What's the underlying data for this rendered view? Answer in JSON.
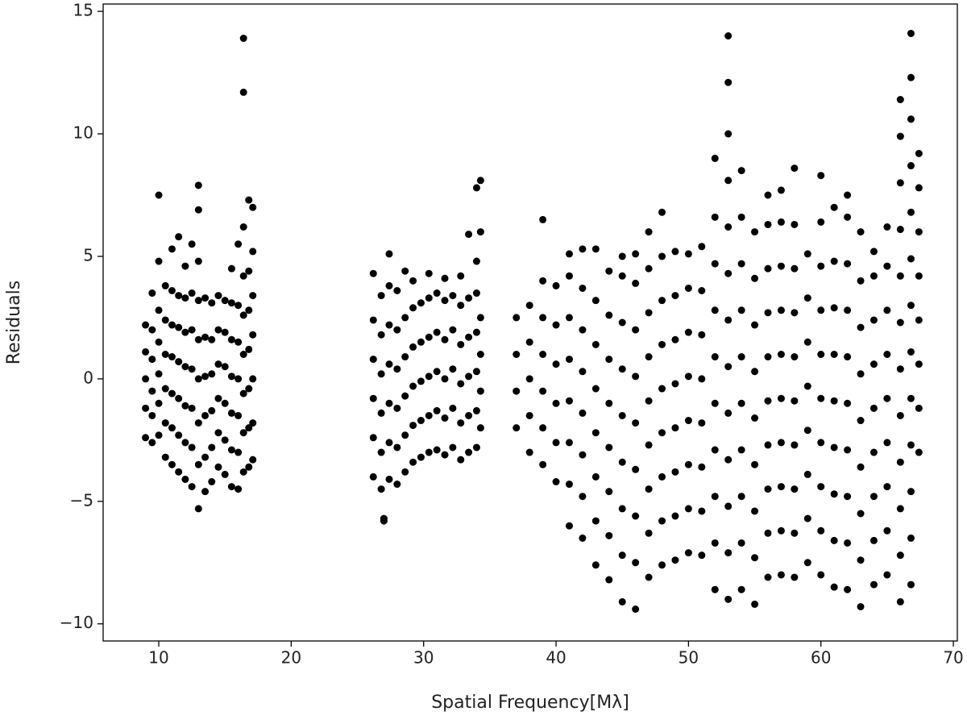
{
  "chart_data": {
    "type": "scatter",
    "x_label": "Spatial Frequency[Mλ]",
    "y_label": "Residuals",
    "color": "#000000",
    "grid": false,
    "xlim": [
      5.8,
      70.3
    ],
    "ylim": [
      -10.7,
      15.3
    ],
    "xticks": [
      10,
      20,
      30,
      40,
      50,
      60,
      70
    ],
    "yticks": [
      {
        "value": -10,
        "label": "−10"
      },
      {
        "value": -5,
        "label": "−5"
      },
      0,
      5,
      10,
      15
    ],
    "x": [
      9.0,
      9.0,
      9.0,
      9.0,
      9.0,
      9.5,
      9.5,
      9.5,
      9.5,
      9.5,
      9.5,
      10.0,
      10.0,
      10.0,
      10.0,
      10.0,
      10.0,
      10.0,
      10.5,
      10.5,
      10.5,
      10.5,
      10.5,
      10.5,
      11.0,
      11.0,
      11.0,
      11.0,
      11.0,
      11.0,
      11.0,
      11.5,
      11.5,
      11.5,
      11.5,
      11.5,
      11.5,
      11.5,
      12.0,
      12.0,
      12.0,
      12.0,
      12.0,
      12.0,
      12.0,
      12.5,
      12.5,
      12.5,
      12.5,
      12.5,
      12.5,
      12.5,
      13.0,
      13.0,
      13.0,
      13.0,
      13.0,
      13.0,
      13.0,
      13.0,
      13.0,
      13.5,
      13.5,
      13.5,
      13.5,
      13.5,
      13.5,
      14.0,
      14.0,
      14.0,
      14.0,
      14.0,
      14.0,
      14.5,
      14.5,
      14.5,
      14.5,
      14.5,
      14.5,
      15.0,
      15.0,
      15.0,
      15.0,
      15.0,
      15.0,
      15.5,
      15.5,
      15.5,
      15.5,
      15.5,
      15.5,
      15.5,
      16.0,
      16.0,
      16.0,
      16.0,
      16.0,
      16.0,
      16.0,
      16.4,
      16.4,
      16.4,
      16.4,
      16.4,
      16.4,
      16.4,
      16.4,
      16.4,
      16.8,
      16.8,
      16.8,
      16.8,
      16.8,
      16.8,
      16.8,
      17.1,
      17.1,
      17.1,
      17.1,
      17.1,
      17.1,
      17.1,
      26.2,
      26.2,
      26.2,
      26.2,
      26.2,
      26.2,
      26.8,
      26.8,
      26.8,
      26.8,
      26.8,
      26.8,
      27.0,
      27.0,
      27.4,
      27.4,
      27.4,
      27.4,
      27.4,
      27.4,
      27.4,
      28.0,
      28.0,
      28.0,
      28.0,
      28.0,
      28.0,
      28.6,
      28.6,
      28.6,
      28.6,
      28.6,
      28.6,
      29.2,
      29.2,
      29.2,
      29.2,
      29.2,
      29.2,
      29.8,
      29.8,
      29.8,
      29.8,
      29.8,
      30.4,
      30.4,
      30.4,
      30.4,
      30.4,
      30.4,
      31.0,
      31.0,
      31.0,
      31.0,
      31.0,
      31.6,
      31.6,
      31.6,
      31.6,
      31.6,
      31.6,
      32.2,
      32.2,
      32.2,
      32.2,
      32.2,
      32.8,
      32.8,
      32.8,
      32.8,
      32.8,
      32.8,
      33.4,
      33.4,
      33.4,
      33.4,
      33.4,
      33.4,
      34.0,
      34.0,
      34.0,
      34.0,
      34.0,
      34.0,
      34.0,
      34.3,
      34.3,
      34.3,
      34.3,
      34.3,
      34.3,
      37,
      37,
      37,
      37,
      38,
      38,
      38,
      38,
      38,
      39,
      39,
      39,
      39,
      39,
      39,
      39,
      40,
      40,
      40,
      40,
      40,
      40,
      41,
      41,
      41,
      41,
      41,
      41,
      41,
      41,
      42,
      42,
      42,
      42,
      42,
      42,
      42,
      42,
      43,
      43,
      43,
      43,
      43,
      43,
      43,
      43,
      44,
      44,
      44,
      44,
      44,
      44,
      44,
      44,
      45,
      45,
      45,
      45,
      45,
      45,
      45,
      45,
      45,
      46,
      46,
      46,
      46,
      46,
      46,
      46,
      46,
      46,
      47,
      47,
      47,
      47,
      47,
      47,
      47,
      47,
      47,
      48,
      48,
      48,
      48,
      48,
      48,
      48,
      48,
      48,
      49,
      49,
      49,
      49,
      49,
      49,
      49,
      49,
      50,
      50,
      50,
      50,
      50,
      50,
      50,
      50,
      51,
      51,
      51,
      51,
      51,
      51,
      51,
      51,
      52,
      52,
      52,
      52,
      52,
      52,
      52,
      52,
      52,
      52,
      53,
      53,
      53,
      53,
      53,
      53,
      53,
      53,
      53,
      53,
      53,
      53,
      53,
      54,
      54,
      54,
      54,
      54,
      54,
      54,
      54,
      54,
      54,
      55,
      55,
      55,
      55,
      55,
      55,
      55,
      55,
      55,
      56,
      56,
      56,
      56,
      56,
      56,
      56,
      56,
      56,
      56,
      57,
      57,
      57,
      57,
      57,
      57,
      57,
      57,
      57,
      57,
      58,
      58,
      58,
      58,
      58,
      58,
      58,
      58,
      58,
      58,
      59,
      59,
      59,
      59,
      59,
      59,
      59,
      59,
      60,
      60,
      60,
      60,
      60,
      60,
      60,
      60,
      60,
      60,
      61,
      61,
      61,
      61,
      61,
      61,
      61,
      61,
      61,
      62,
      62,
      62,
      62,
      62,
      62,
      62,
      62,
      62,
      62,
      63,
      63,
      63,
      63,
      63,
      63,
      63,
      63,
      63,
      64,
      64,
      64,
      64,
      64,
      64,
      64,
      64,
      64,
      65,
      65,
      65,
      65,
      65,
      65,
      65,
      65,
      65,
      66,
      66,
      66,
      66,
      66,
      66,
      66,
      66,
      66,
      66,
      66,
      66,
      66.8,
      66.8,
      66.8,
      66.8,
      66.8,
      66.8,
      66.8,
      66.8,
      66.8,
      66.8,
      66.8,
      66.8,
      66.8,
      67.4,
      67.4,
      67.4,
      67.4,
      67.4,
      67.4,
      67.4,
      67.4
    ],
    "values": [
      -2.4,
      -1.2,
      0,
      1.1,
      2.2,
      -2.6,
      -1.5,
      -0.5,
      0.8,
      2.0,
      3.5,
      -2.3,
      -1,
      0.2,
      1.5,
      2.8,
      4.8,
      7.5,
      -3.2,
      -1.8,
      -0.4,
      1,
      2.4,
      3.8,
      -3.5,
      -2,
      -0.6,
      0.9,
      2.2,
      3.6,
      5.3,
      -3.8,
      -2.3,
      -0.8,
      0.7,
      2.1,
      3.4,
      5.8,
      -4.1,
      -2.6,
      -1.1,
      0.5,
      1.9,
      3.3,
      4.6,
      -4.4,
      -2.8,
      -1.2,
      0.4,
      2,
      3.5,
      5.5,
      -5.3,
      -3.5,
      -1.8,
      0,
      1.6,
      3.2,
      4.8,
      6.9,
      7.9,
      -4.6,
      -3.2,
      -1.5,
      0.1,
      1.7,
      3.3,
      -4.2,
      -2.8,
      -1.3,
      0.2,
      1.6,
      3.1,
      -3.6,
      -2.2,
      -0.8,
      0.6,
      2,
      3.4,
      -3.9,
      -2.5,
      -1,
      0.5,
      1.9,
      3.2,
      -4.4,
      -2.9,
      -1.4,
      0.1,
      1.6,
      3.1,
      4.5,
      -4.5,
      -3,
      -1.5,
      0,
      1.5,
      3,
      5.5,
      -3.8,
      -2.2,
      -0.6,
      1,
      2.6,
      4.2,
      6.2,
      11.7,
      13.9,
      -3.6,
      -2,
      -0.4,
      1.2,
      2.8,
      4.4,
      7.3,
      -3.3,
      -1.8,
      0,
      1.8,
      3.4,
      5.2,
      7,
      -4.0,
      -2.4,
      -0.8,
      0.8,
      2.4,
      4.3,
      -4.5,
      -3,
      -1.4,
      0.2,
      1.8,
      3.4,
      -5.8,
      -5.7,
      -4.1,
      -2.6,
      -1,
      0.6,
      2.2,
      3.8,
      5.1,
      -4.3,
      -2.8,
      -1.2,
      0.4,
      2.0,
      3.6,
      -3.8,
      -2.3,
      -0.7,
      0.9,
      2.5,
      4.4,
      -3.4,
      -1.9,
      -0.3,
      1.3,
      2.9,
      4.0,
      -3.2,
      -1.7,
      -0.1,
      1.5,
      3.1,
      -3.0,
      -1.5,
      0.1,
      1.7,
      3.3,
      4.3,
      -2.9,
      -1.3,
      0.3,
      1.9,
      3.5,
      -3.1,
      -1.6,
      0,
      1.6,
      3.2,
      4.1,
      -2.8,
      -1.2,
      0.4,
      2.0,
      3.4,
      -3.3,
      -1.8,
      -0.2,
      1.4,
      3.0,
      4.2,
      -3.0,
      -1.5,
      0.1,
      1.7,
      3.3,
      5.9,
      -2.8,
      -1.3,
      0.3,
      1.9,
      3.5,
      4.8,
      7.8,
      -2.0,
      -0.5,
      1.0,
      2.5,
      6.0,
      8.1,
      -2,
      -0.5,
      1,
      2.5,
      -3,
      -1.5,
      0,
      1.5,
      3,
      -3.5,
      -2,
      -0.5,
      1,
      2.5,
      4,
      6.5,
      -4.2,
      -2.6,
      -1,
      0.6,
      2.2,
      3.8,
      -6,
      -4.3,
      -2.6,
      -0.9,
      0.8,
      2.5,
      4.2,
      5.1,
      -6.5,
      -4.8,
      -3.1,
      -1.4,
      0.3,
      2,
      3.7,
      5.3,
      -7.6,
      -5.8,
      -4,
      -2.2,
      -0.4,
      1.4,
      3.2,
      5.3,
      -8.2,
      -6.4,
      -4.6,
      -2.8,
      -1,
      0.8,
      2.6,
      4.4,
      -9.1,
      -7.2,
      -5.3,
      -3.4,
      -1.5,
      0.4,
      2.3,
      4.2,
      5.0,
      -9.4,
      -7.5,
      -5.6,
      -3.7,
      -1.8,
      0.1,
      2,
      3.9,
      5.1,
      -8.1,
      -6.3,
      -4.5,
      -2.7,
      -0.9,
      0.9,
      2.7,
      4.5,
      6.0,
      -7.6,
      -5.8,
      -4,
      -2.2,
      -0.4,
      1.4,
      3.2,
      5,
      6.8,
      -7.4,
      -5.6,
      -3.8,
      -2,
      -0.2,
      1.6,
      3.4,
      5.2,
      -7.1,
      -5.3,
      -3.5,
      -1.7,
      0.1,
      1.9,
      3.7,
      5.1,
      -7.2,
      -5.4,
      -3.6,
      -1.8,
      0,
      1.8,
      3.6,
      5.4,
      -8.6,
      -6.7,
      -4.8,
      -2.9,
      -1,
      0.9,
      2.8,
      4.7,
      6.6,
      9.0,
      -9.0,
      -7.1,
      -5.2,
      -3.3,
      -1.4,
      0.5,
      2.4,
      4.3,
      6.2,
      8.1,
      10,
      12.1,
      14.0,
      -8.6,
      -6.7,
      -4.8,
      -2.9,
      -1,
      0.9,
      2.8,
      4.7,
      6.6,
      8.5,
      -9.2,
      -7.3,
      -5.4,
      -3.5,
      -1.6,
      0.3,
      2.2,
      4.1,
      6.0,
      -8.1,
      -6.3,
      -4.5,
      -2.7,
      -0.9,
      0.9,
      2.7,
      4.5,
      6.3,
      7.5,
      -8.0,
      -6.2,
      -4.4,
      -2.6,
      -0.8,
      1,
      2.8,
      4.6,
      6.4,
      7.7,
      -8.1,
      -6.3,
      -4.5,
      -2.7,
      -0.9,
      0.9,
      2.7,
      4.5,
      6.3,
      8.6,
      -7.5,
      -5.7,
      -3.9,
      -2.1,
      -0.3,
      1.5,
      3.3,
      5.1,
      -8.0,
      -6.2,
      -4.4,
      -2.6,
      -0.8,
      1,
      2.8,
      4.6,
      6.4,
      8.3,
      -8.5,
      -6.6,
      -4.7,
      -2.8,
      -0.9,
      1,
      2.9,
      4.8,
      7.0,
      -8.6,
      -6.7,
      -4.8,
      -2.9,
      -1,
      0.9,
      2.8,
      4.7,
      6.6,
      7.5,
      -9.3,
      -7.4,
      -5.5,
      -3.6,
      -1.7,
      0.2,
      2.1,
      4,
      6,
      -8.4,
      -6.6,
      -4.8,
      -3,
      -1.2,
      0.6,
      2.4,
      4.2,
      5.2,
      -8.0,
      -6.2,
      -4.4,
      -2.6,
      -0.8,
      1,
      2.8,
      4.6,
      6.2,
      -9.1,
      -7.2,
      -5.3,
      -3.4,
      -1.5,
      0.4,
      2.3,
      4.2,
      6.1,
      8,
      9.9,
      11.4,
      -8.4,
      -6.5,
      -4.6,
      -2.7,
      -0.8,
      1.1,
      3,
      4.9,
      6.8,
      8.7,
      10.6,
      12.3,
      14.1,
      -3,
      -1.2,
      0.6,
      2.4,
      4.2,
      6,
      7.8,
      9.2
    ]
  }
}
